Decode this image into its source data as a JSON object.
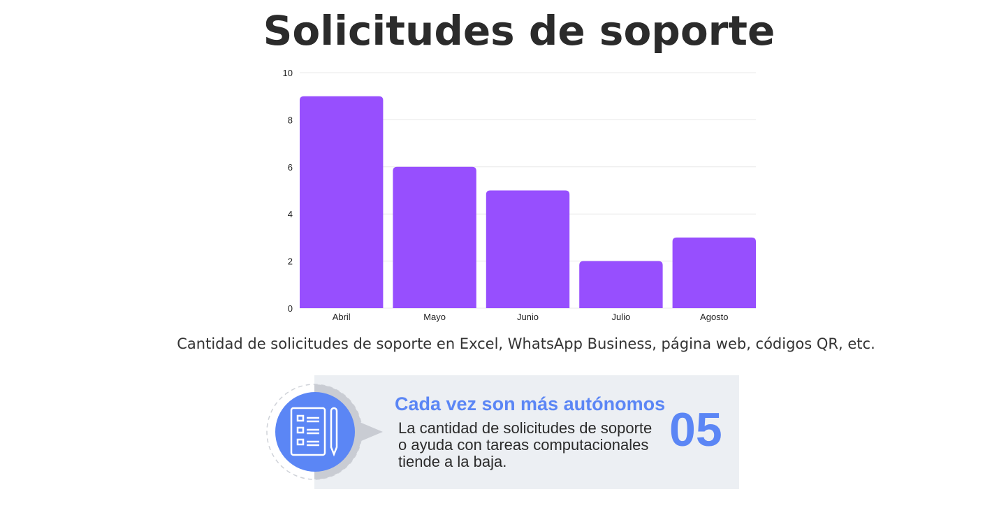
{
  "title": "Solicitudes de soporte",
  "caption": "Cantidad de solicitudes de soporte en Excel, WhatsApp Business, página web, códigos QR, etc.",
  "chart_data": {
    "type": "bar",
    "categories": [
      "Abril",
      "Mayo",
      "Junio",
      "Julio",
      "Agosto"
    ],
    "values": [
      9,
      6,
      5,
      2,
      3
    ],
    "ylim": [
      0,
      10
    ],
    "yticks": [
      0,
      2,
      4,
      6,
      8,
      10
    ],
    "grid": true,
    "bar_color": "#974ffe"
  },
  "callout": {
    "icon": "checklist-pencil-icon",
    "heading": "Cada vez son más autónomos",
    "body": "La cantidad de solicitudes de soporte o ayuda con tareas computacionales tiende a la baja.",
    "number": "05",
    "accent": "#5b86f5"
  }
}
